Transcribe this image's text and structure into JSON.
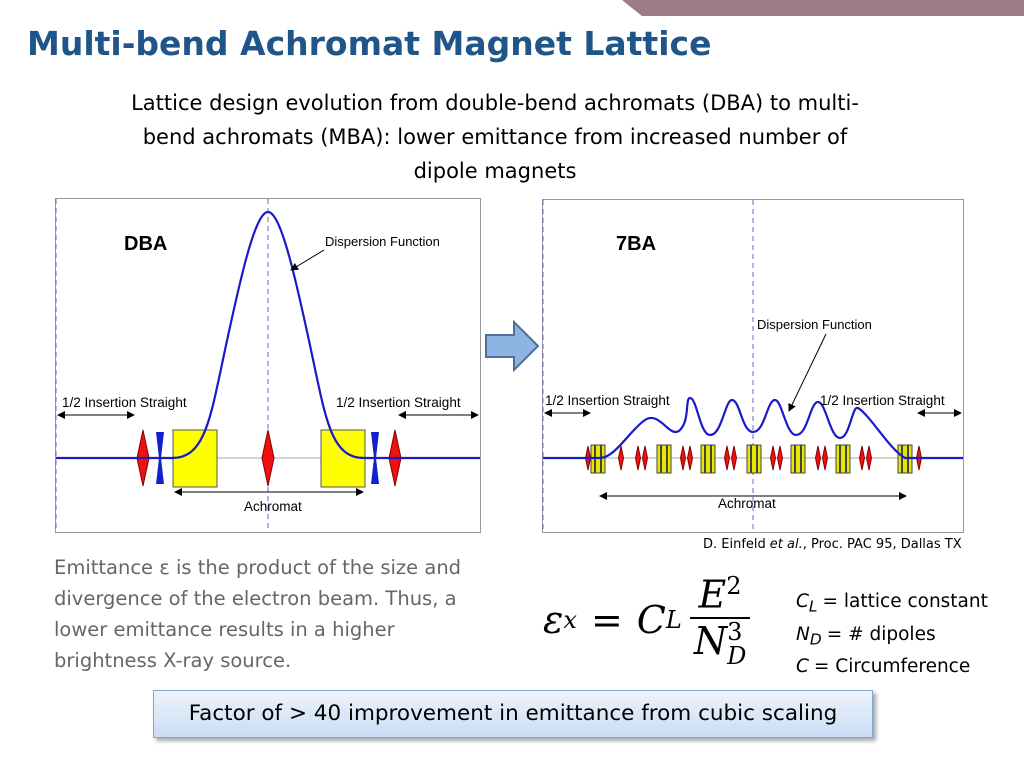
{
  "header": {
    "title": "Multi-bend Achromat Magnet Lattice",
    "subtitle": "Lattice design evolution from double-bend achromats (DBA) to multi-bend achromats (MBA): lower emittance from increased number of dipole magnets"
  },
  "diagrams": [
    {
      "label": "DBA",
      "curve_label": "Dispersion Function",
      "left_straight": "1/2 Insertion Straight",
      "right_straight": "1/2 Insertion Straight",
      "span_label": "Achromat"
    },
    {
      "label": "7BA",
      "curve_label": "Dispersion Function",
      "left_straight": "1/2 Insertion Straight",
      "right_straight": "1/2 Insertion Straight",
      "span_label": "Achromat"
    }
  ],
  "citation": {
    "author": "D. Einfeld",
    "etal": "et al.",
    "rest": ", Proc. PAC 95, Dallas TX"
  },
  "body": "Emittance ε is the product of the size and divergence of the electron beam. Thus, a lower emittance results in a higher brightness X-ray source.",
  "formula": {
    "lhs": "ε",
    "lhs_sub": "x",
    "eq": "=",
    "coef": "C",
    "coef_sub": "L",
    "num": "E",
    "num_sup": "2",
    "den": "N",
    "den_sub": "D",
    "den_sup": "3"
  },
  "legend": [
    {
      "symbol": "C",
      "sub": "L",
      "desc": "= lattice constant"
    },
    {
      "symbol": "N",
      "sub": "D",
      "desc": "= # dipoles"
    },
    {
      "symbol": "C",
      "desc": "= Circumference"
    }
  ],
  "callout": "Factor of > 40 improvement in emittance from cubic scaling"
}
